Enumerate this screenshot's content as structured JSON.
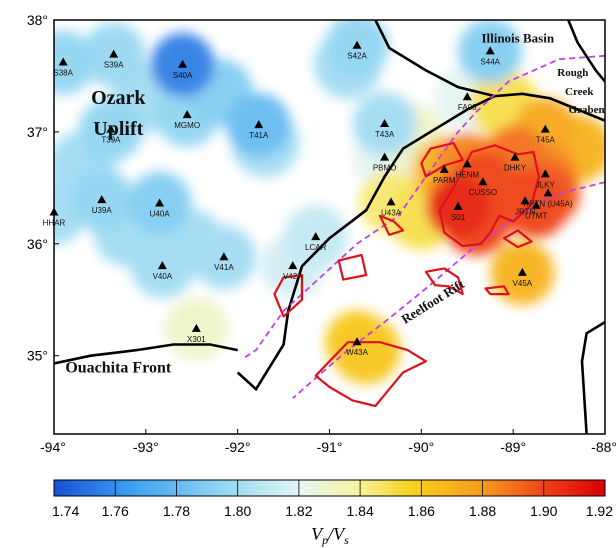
{
  "map": {
    "lon_range": [
      -94,
      -88
    ],
    "lat_range": [
      34.3,
      38.0
    ],
    "x_ticks": [
      {
        "value": -94,
        "label": "-94°"
      },
      {
        "value": -93,
        "label": "-93°"
      },
      {
        "value": -92,
        "label": "-92°"
      },
      {
        "value": -91,
        "label": "-91°"
      },
      {
        "value": -90,
        "label": "-90°"
      },
      {
        "value": -89,
        "label": "-89°"
      },
      {
        "value": -88,
        "label": "-88°"
      }
    ],
    "y_ticks": [
      {
        "value": 38,
        "label": "38°"
      },
      {
        "value": 37,
        "label": "37°"
      },
      {
        "value": 36,
        "label": "36°"
      },
      {
        "value": 35,
        "label": "35°"
      }
    ]
  },
  "colorbar": {
    "min": 1.74,
    "max": 1.92,
    "ticks": [
      "1.74",
      "1.76",
      "1.78",
      "1.80",
      "1.82",
      "1.84",
      "1.86",
      "1.88",
      "1.90",
      "1.92"
    ],
    "title_main": "V",
    "title_sub1": "p",
    "title_mid": "/V",
    "title_sub2": "s",
    "colors": [
      "#1a4fd6",
      "#3aa0f0",
      "#8fd4f2",
      "#f7f3a0",
      "#f7d21a",
      "#f79a1e",
      "#ee3a18",
      "#d90000"
    ]
  },
  "region_labels": [
    {
      "text": "Ozark",
      "lon": -93.3,
      "lat": 37.25,
      "size": 20
    },
    {
      "text": "Uplift",
      "lon": -93.3,
      "lat": 36.97,
      "size": 20
    },
    {
      "text": "Illinois Basin",
      "lon": -88.95,
      "lat": 37.8,
      "size": 13
    },
    {
      "text": "Rough",
      "lon": -88.35,
      "lat": 37.5,
      "size": 11
    },
    {
      "text": "Creek",
      "lon": -88.28,
      "lat": 37.33,
      "size": 11
    },
    {
      "text": "Graben",
      "lon": -88.2,
      "lat": 37.17,
      "size": 11
    },
    {
      "text": "Ouachita Front",
      "lon": -93.3,
      "lat": 34.85,
      "size": 16
    }
  ],
  "reelfoot_label": {
    "text": "Reelfoot Rift",
    "lon": -89.85,
    "lat": 35.45,
    "size": 13,
    "angle": -32
  },
  "velocity_points": [
    {
      "name": "S38A",
      "lon": -93.9,
      "lat": 37.62,
      "v": 1.795
    },
    {
      "name": "S39A",
      "lon": -93.35,
      "lat": 37.69,
      "v": 1.797
    },
    {
      "name": "S40A",
      "lon": -92.6,
      "lat": 37.6,
      "v": 1.755
    },
    {
      "name": "S42A",
      "lon": -90.7,
      "lat": 37.77,
      "v": 1.795
    },
    {
      "name": "S44A",
      "lon": -89.25,
      "lat": 37.72,
      "v": 1.79
    },
    {
      "name": "T39A",
      "lon": -93.38,
      "lat": 37.02,
      "v": 1.795
    },
    {
      "name": "MGMO",
      "lon": -92.55,
      "lat": 37.15,
      "v": 1.795
    },
    {
      "name": "T41A",
      "lon": -91.77,
      "lat": 37.06,
      "v": 1.78
    },
    {
      "name": "T43A",
      "lon": -90.4,
      "lat": 37.07,
      "v": 1.8
    },
    {
      "name": "FA08",
      "lon": -89.5,
      "lat": 37.31,
      "v": 1.82
    },
    {
      "name": "T45A",
      "lon": -88.65,
      "lat": 37.02,
      "v": 1.875
    },
    {
      "name": "PBMO",
      "lon": -90.4,
      "lat": 36.77,
      "v": 1.82
    },
    {
      "name": "PARM",
      "lon": -89.75,
      "lat": 36.66,
      "v": 1.87
    },
    {
      "name": "HENM",
      "lon": -89.5,
      "lat": 36.71,
      "v": 1.885
    },
    {
      "name": "DHKY",
      "lon": -88.98,
      "lat": 36.77,
      "v": 1.89
    },
    {
      "name": "JLKY",
      "lon": -88.65,
      "lat": 36.62,
      "v": 1.885
    },
    {
      "name": "CUSSO",
      "lon": -89.33,
      "lat": 36.55,
      "v": 1.9
    },
    {
      "name": "S01",
      "lon": -89.6,
      "lat": 36.33,
      "v": 1.91
    },
    {
      "name": "JRTN",
      "lon": -88.87,
      "lat": 36.38,
      "v": 1.9
    },
    {
      "name": "UTMT",
      "lon": -88.75,
      "lat": 36.34,
      "v": 1.9
    },
    {
      "name": "RPTN (U45A)",
      "lon": -88.62,
      "lat": 36.45,
      "v": 1.895
    },
    {
      "name": "U43A",
      "lon": -90.33,
      "lat": 36.37,
      "v": 1.845
    },
    {
      "name": "HHAR",
      "lon": -94.0,
      "lat": 36.28,
      "v": 1.8
    },
    {
      "name": "U39A",
      "lon": -93.48,
      "lat": 36.39,
      "v": 1.795
    },
    {
      "name": "U40A",
      "lon": -92.85,
      "lat": 36.36,
      "v": 1.79
    },
    {
      "name": "LCAR",
      "lon": -91.15,
      "lat": 36.06,
      "v": 1.81
    },
    {
      "name": "V40A",
      "lon": -92.82,
      "lat": 35.8,
      "v": 1.8
    },
    {
      "name": "V41A",
      "lon": -92.15,
      "lat": 35.88,
      "v": 1.8
    },
    {
      "name": "V42A",
      "lon": -91.4,
      "lat": 35.8,
      "v": 1.815
    },
    {
      "name": "V45A",
      "lon": -88.9,
      "lat": 35.74,
      "v": 1.87
    },
    {
      "name": "X301",
      "lon": -92.45,
      "lat": 35.24,
      "v": 1.83
    },
    {
      "name": "W43A",
      "lon": -90.7,
      "lat": 35.12,
      "v": 1.86
    }
  ],
  "extra_blobs": [
    {
      "lon": -90.8,
      "lat": 37.6,
      "v": 1.8
    },
    {
      "lon": -92.2,
      "lat": 37.35,
      "v": 1.79
    },
    {
      "lon": -93.0,
      "lat": 37.3,
      "v": 1.8
    },
    {
      "lon": -93.7,
      "lat": 36.7,
      "v": 1.8
    },
    {
      "lon": -93.2,
      "lat": 36.1,
      "v": 1.8
    },
    {
      "lon": -92.5,
      "lat": 36.0,
      "v": 1.8
    },
    {
      "lon": -91.7,
      "lat": 36.9,
      "v": 1.8
    },
    {
      "lon": -90.1,
      "lat": 36.95,
      "v": 1.83
    },
    {
      "lon": -89.1,
      "lat": 37.25,
      "v": 1.85
    },
    {
      "lon": -88.3,
      "lat": 36.85,
      "v": 1.87
    },
    {
      "lon": -89.4,
      "lat": 36.2,
      "v": 1.9
    },
    {
      "lon": -90.6,
      "lat": 35.05,
      "v": 1.862
    },
    {
      "lon": -90.0,
      "lat": 36.25,
      "v": 1.85
    }
  ],
  "borders": [
    [
      [
        -94,
        34.93
      ],
      [
        -93.6,
        35.0
      ],
      [
        -93.1,
        35.05
      ],
      [
        -92.7,
        35.1
      ],
      [
        -92.3,
        35.1
      ],
      [
        -92.0,
        35.05
      ]
    ],
    [
      [
        -92.0,
        34.85
      ],
      [
        -91.8,
        34.7
      ],
      [
        -91.5,
        35.1
      ],
      [
        -91.45,
        35.4
      ],
      [
        -91.3,
        35.8
      ],
      [
        -91.0,
        36.05
      ],
      [
        -90.6,
        36.3
      ],
      [
        -90.4,
        36.6
      ],
      [
        -90.2,
        36.85
      ],
      [
        -89.8,
        37.05
      ],
      [
        -89.5,
        37.2
      ],
      [
        -89.2,
        37.32
      ],
      [
        -88.9,
        37.34
      ],
      [
        -88.6,
        37.3
      ],
      [
        -88.3,
        37.2
      ],
      [
        -88.0,
        37.1
      ]
    ],
    [
      [
        -90.5,
        38.0
      ],
      [
        -90.35,
        37.75
      ],
      [
        -89.95,
        37.55
      ],
      [
        -89.6,
        37.4
      ],
      [
        -89.2,
        37.32
      ]
    ],
    [
      [
        -88.4,
        38.0
      ],
      [
        -88.3,
        37.8
      ],
      [
        -88.1,
        37.55
      ],
      [
        -88.0,
        37.45
      ]
    ],
    [
      [
        -88.0,
        35.3
      ],
      [
        -88.2,
        35.2
      ],
      [
        -88.25,
        34.95
      ],
      [
        -88.2,
        34.3
      ]
    ]
  ],
  "rift_dashed": [
    [
      [
        -88.0,
        37.68
      ],
      [
        -88.5,
        37.65
      ],
      [
        -89.05,
        37.45
      ],
      [
        -89.4,
        37.18
      ],
      [
        -89.6,
        37.0
      ],
      [
        -89.95,
        36.6
      ],
      [
        -90.25,
        36.25
      ],
      [
        -90.7,
        36.0
      ],
      [
        -91.1,
        35.7
      ],
      [
        -91.5,
        35.4
      ],
      [
        -91.8,
        35.05
      ],
      [
        -91.95,
        34.97
      ]
    ],
    [
      [
        -88.0,
        36.55
      ],
      [
        -88.5,
        36.45
      ],
      [
        -88.95,
        36.25
      ],
      [
        -89.45,
        35.95
      ],
      [
        -89.95,
        35.6
      ],
      [
        -90.4,
        35.3
      ],
      [
        -90.8,
        35.05
      ],
      [
        -91.15,
        34.8
      ],
      [
        -91.4,
        34.62
      ]
    ]
  ],
  "seismic_zones": [
    [
      [
        -89.9,
        36.85
      ],
      [
        -89.65,
        36.9
      ],
      [
        -89.55,
        36.75
      ],
      [
        -89.75,
        36.7
      ],
      [
        -89.95,
        36.6
      ],
      [
        -90.0,
        36.72
      ],
      [
        -89.9,
        36.85
      ]
    ],
    [
      [
        -89.45,
        36.82
      ],
      [
        -89.2,
        36.88
      ],
      [
        -88.95,
        36.8
      ],
      [
        -88.78,
        36.82
      ],
      [
        -88.72,
        36.6
      ],
      [
        -88.8,
        36.35
      ],
      [
        -89.0,
        36.2
      ],
      [
        -89.15,
        36.25
      ],
      [
        -89.25,
        36.1
      ],
      [
        -89.35,
        36.0
      ],
      [
        -89.55,
        35.98
      ],
      [
        -89.75,
        36.1
      ],
      [
        -89.8,
        36.3
      ],
      [
        -89.65,
        36.5
      ],
      [
        -89.45,
        36.82
      ]
    ],
    [
      [
        -89.1,
        36.05
      ],
      [
        -88.95,
        36.12
      ],
      [
        -88.8,
        36.02
      ],
      [
        -88.95,
        35.97
      ],
      [
        -89.1,
        36.05
      ]
    ],
    [
      [
        -90.45,
        36.25
      ],
      [
        -90.3,
        36.2
      ],
      [
        -90.2,
        36.12
      ],
      [
        -90.35,
        36.08
      ],
      [
        -90.45,
        36.25
      ]
    ],
    [
      [
        -90.9,
        35.85
      ],
      [
        -90.65,
        35.9
      ],
      [
        -90.6,
        35.72
      ],
      [
        -90.85,
        35.68
      ],
      [
        -90.9,
        35.85
      ]
    ],
    [
      [
        -89.95,
        35.75
      ],
      [
        -89.75,
        35.78
      ],
      [
        -89.6,
        35.7
      ],
      [
        -89.55,
        35.55
      ],
      [
        -89.7,
        35.62
      ],
      [
        -89.85,
        35.63
      ],
      [
        -89.95,
        35.75
      ]
    ],
    [
      [
        -89.3,
        35.6
      ],
      [
        -89.1,
        35.62
      ],
      [
        -89.05,
        35.55
      ],
      [
        -89.25,
        35.55
      ],
      [
        -89.3,
        35.6
      ]
    ],
    [
      [
        -91.5,
        35.7
      ],
      [
        -91.3,
        35.72
      ],
      [
        -91.3,
        35.5
      ],
      [
        -91.5,
        35.35
      ],
      [
        -91.6,
        35.55
      ],
      [
        -91.5,
        35.7
      ]
    ],
    [
      [
        -90.8,
        35.12
      ],
      [
        -90.45,
        35.12
      ],
      [
        -90.15,
        35.05
      ],
      [
        -89.95,
        34.95
      ],
      [
        -90.2,
        34.85
      ],
      [
        -90.35,
        34.7
      ],
      [
        -90.5,
        34.55
      ],
      [
        -90.75,
        34.6
      ],
      [
        -91.0,
        34.72
      ],
      [
        -91.15,
        34.82
      ],
      [
        -91.0,
        34.95
      ],
      [
        -90.8,
        35.12
      ]
    ]
  ]
}
